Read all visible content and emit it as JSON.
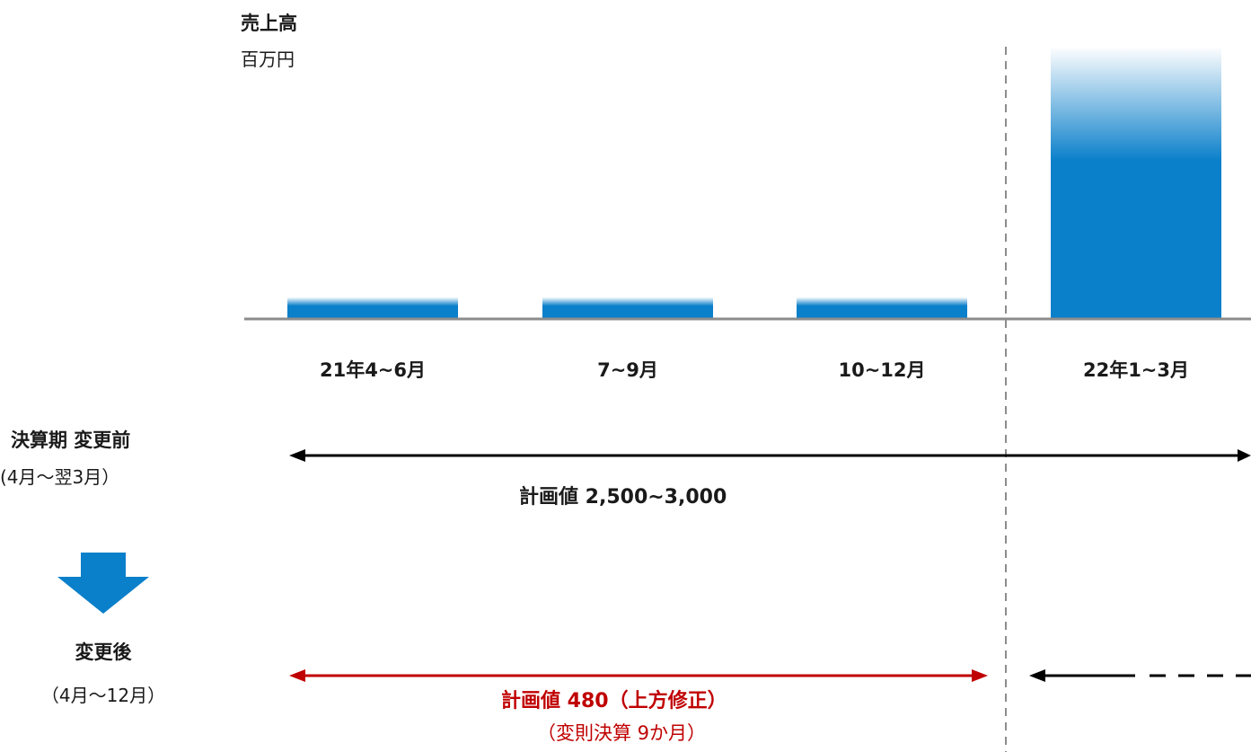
{
  "chart_data": {
    "type": "bar",
    "title": "売上高",
    "ylabel": "百万円",
    "categories": [
      "21年4~6月",
      "7~9月",
      "10~12月",
      "22年1~3月"
    ],
    "values": [
      80,
      80,
      80,
      1000
    ],
    "ylim": [
      0,
      1000
    ],
    "grid": false,
    "bar_color": "#0a7fca"
  },
  "periods": {
    "before": {
      "title": "決算期 変更前",
      "subtitle": "(4月〜翌3月）",
      "plan_label": "計画値 2,500~3,000"
    },
    "after": {
      "title": "変更後",
      "subtitle": "（4月〜12月）",
      "plan_label": "計画値 480（上方修正）",
      "plan_note": "（変則決算 9か月）"
    }
  },
  "colors": {
    "arrow_black": "#000000",
    "arrow_red": "#c00000",
    "down_arrow": "#0a7fca",
    "axis": "#8c8c8c",
    "divider": "#8c8c8c"
  },
  "icons": {
    "down_arrow": "down-arrow-icon"
  }
}
